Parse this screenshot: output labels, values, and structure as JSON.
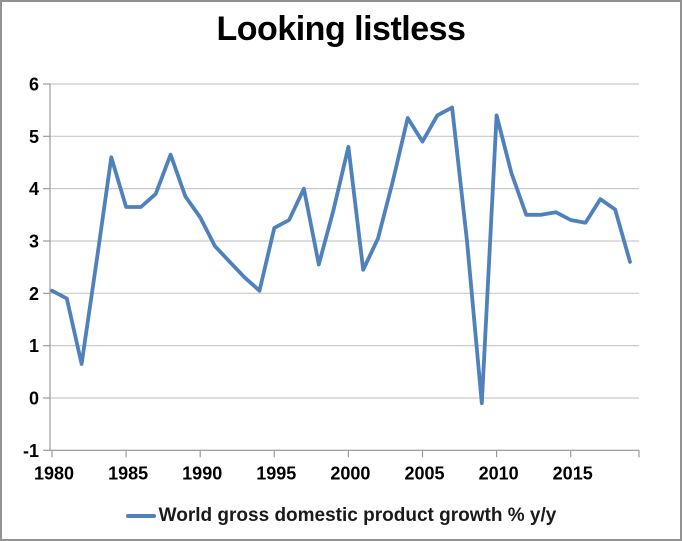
{
  "chart_data": {
    "type": "line",
    "title": "Looking listless",
    "legend": "World gross domestic product growth % y/y",
    "xlabel": "",
    "ylabel": "",
    "x": [
      1980,
      1981,
      1982,
      1983,
      1984,
      1985,
      1986,
      1987,
      1988,
      1989,
      1990,
      1991,
      1992,
      1993,
      1994,
      1995,
      1996,
      1997,
      1998,
      1999,
      2000,
      2001,
      2002,
      2003,
      2004,
      2005,
      2006,
      2007,
      2008,
      2009,
      2010,
      2011,
      2012,
      2013,
      2014,
      2015,
      2016,
      2017,
      2018,
      2019
    ],
    "series": [
      {
        "name": "World gross domestic product growth % y/y",
        "values": [
          2.05,
          1.9,
          0.65,
          2.6,
          4.6,
          3.65,
          3.65,
          3.9,
          4.65,
          3.85,
          3.45,
          2.9,
          2.6,
          2.3,
          2.05,
          3.25,
          3.4,
          4.0,
          2.55,
          3.6,
          4.8,
          2.45,
          3.05,
          4.15,
          5.35,
          4.9,
          5.4,
          5.55,
          3.0,
          -0.1,
          5.4,
          4.3,
          3.5,
          3.5,
          3.55,
          3.4,
          3.35,
          3.8,
          3.6,
          2.6
        ]
      }
    ],
    "xticks": [
      1980,
      1985,
      1990,
      1995,
      2000,
      2005,
      2010,
      2015
    ],
    "yticks": [
      -1,
      0,
      1,
      2,
      3,
      4,
      5,
      6
    ],
    "ylim": [
      -1,
      6
    ],
    "xlim": [
      1980,
      2019.7
    ],
    "grid": "horizontal",
    "legend_position": "bottom",
    "line_color": "#4F81BD",
    "gridline_color": "#C9C9C9",
    "axis_color": "#9B9B9B",
    "text_color": "#000000"
  }
}
